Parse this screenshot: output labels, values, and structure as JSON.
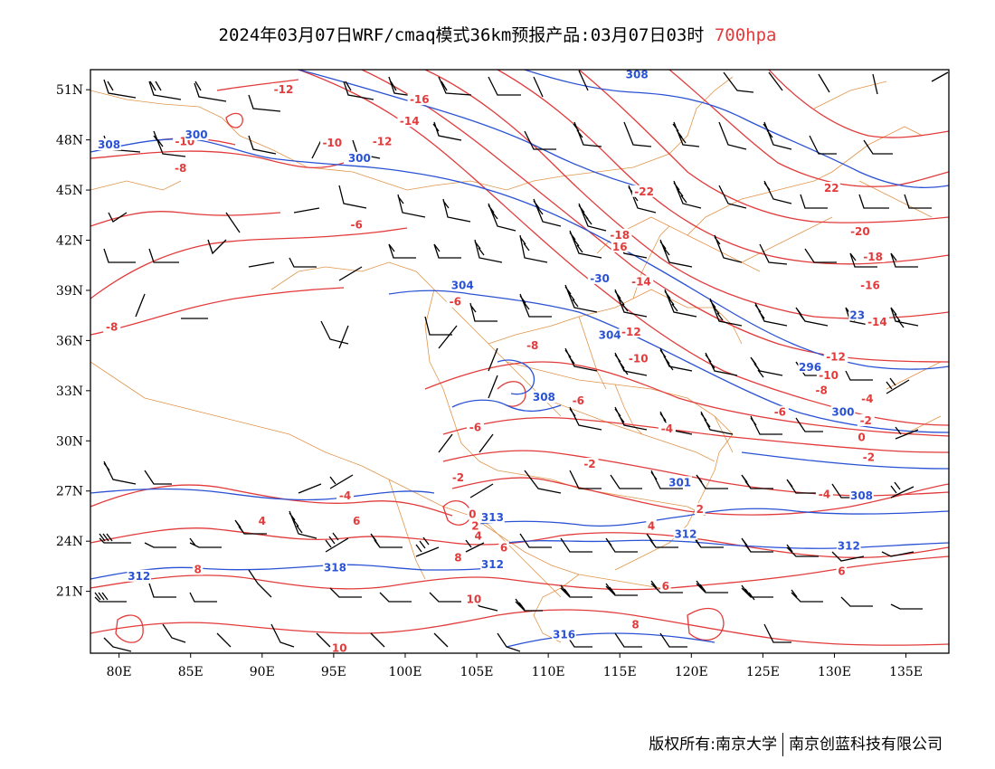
{
  "title": {
    "main": "2024年03月07日WRF/cmaq模式36km预报产品:03月07日03时",
    "level": "700hpa",
    "level_color": "#e23b3b"
  },
  "footer": {
    "copyright": "版权所有:南京大学",
    "company": "南京创蓝科技有限公司"
  },
  "map": {
    "lon_ticks": [
      "80E",
      "85E",
      "90E",
      "95E",
      "100E",
      "105E",
      "110E",
      "115E",
      "120E",
      "125E",
      "130E",
      "135E"
    ],
    "lat_ticks": [
      "51N",
      "48N",
      "45N",
      "42N",
      "39N",
      "36N",
      "33N",
      "30N",
      "27N",
      "24N",
      "21N"
    ],
    "colors": {
      "temperature": "#e23b3b",
      "height": "#2a52d4",
      "boundary": "#e0954a",
      "barb": "#000000"
    },
    "temperature_labels": [
      {
        "text": "-12",
        "lon": 91.5,
        "lat": 50.9
      },
      {
        "text": "-16",
        "lon": 101,
        "lat": 50.3
      },
      {
        "text": "-14",
        "lon": 100.3,
        "lat": 49.0
      },
      {
        "text": "-10",
        "lon": 84.6,
        "lat": 47.8
      },
      {
        "text": "-10",
        "lon": 94.9,
        "lat": 47.7
      },
      {
        "text": "-12",
        "lon": 98.4,
        "lat": 47.8
      },
      {
        "text": "-8",
        "lon": 84.3,
        "lat": 46.2
      },
      {
        "text": "-22",
        "lon": 116.7,
        "lat": 44.8
      },
      {
        "text": "22",
        "lon": 129.8,
        "lat": 45.0
      },
      {
        "text": "-20",
        "lon": 131.8,
        "lat": 42.4
      },
      {
        "text": "-6",
        "lon": 96.6,
        "lat": 42.8
      },
      {
        "text": "-18",
        "lon": 115.0,
        "lat": 42.2
      },
      {
        "text": "16",
        "lon": 115.0,
        "lat": 41.5
      },
      {
        "text": "-18",
        "lon": 132.7,
        "lat": 40.9
      },
      {
        "text": "-14",
        "lon": 116.5,
        "lat": 39.4
      },
      {
        "text": "-16",
        "lon": 132.5,
        "lat": 39.2
      },
      {
        "text": "-6",
        "lon": 103.5,
        "lat": 38.2
      },
      {
        "text": "-14",
        "lon": 133.0,
        "lat": 37.0
      },
      {
        "text": "-8",
        "lon": 79.5,
        "lat": 36.7
      },
      {
        "text": "-12",
        "lon": 115.8,
        "lat": 36.4
      },
      {
        "text": "-8",
        "lon": 108.9,
        "lat": 35.6
      },
      {
        "text": "-10",
        "lon": 116.3,
        "lat": 34.8
      },
      {
        "text": "-12",
        "lon": 130.1,
        "lat": 34.9
      },
      {
        "text": "-10",
        "lon": 129.6,
        "lat": 33.8
      },
      {
        "text": "-8",
        "lon": 129.1,
        "lat": 32.9
      },
      {
        "text": "-4",
        "lon": 132.3,
        "lat": 32.4
      },
      {
        "text": "-6",
        "lon": 112.1,
        "lat": 32.3
      },
      {
        "text": "-6",
        "lon": 126.2,
        "lat": 31.6
      },
      {
        "text": "-2",
        "lon": 132.2,
        "lat": 31.1
      },
      {
        "text": "-6",
        "lon": 104.9,
        "lat": 30.7
      },
      {
        "text": "-4",
        "lon": 118.3,
        "lat": 30.6
      },
      {
        "text": "0",
        "lon": 131.9,
        "lat": 30.1
      },
      {
        "text": "-2",
        "lon": 112.9,
        "lat": 28.5
      },
      {
        "text": "-2",
        "lon": 132.4,
        "lat": 28.9
      },
      {
        "text": "-2",
        "lon": 103.7,
        "lat": 27.7
      },
      {
        "text": "-4",
        "lon": 129.3,
        "lat": 26.7
      },
      {
        "text": "-4",
        "lon": 95.8,
        "lat": 26.6
      },
      {
        "text": "2",
        "lon": 120.6,
        "lat": 25.8
      },
      {
        "text": "0",
        "lon": 104.7,
        "lat": 25.5
      },
      {
        "text": "6",
        "lon": 96.6,
        "lat": 25.1
      },
      {
        "text": "4",
        "lon": 90.0,
        "lat": 25.1
      },
      {
        "text": "2",
        "lon": 104.9,
        "lat": 24.8
      },
      {
        "text": "4",
        "lon": 117.2,
        "lat": 24.8
      },
      {
        "text": "4",
        "lon": 105.1,
        "lat": 24.2
      },
      {
        "text": "6",
        "lon": 106.9,
        "lat": 23.5
      },
      {
        "text": "8",
        "lon": 103.7,
        "lat": 22.9
      },
      {
        "text": "8",
        "lon": 85.5,
        "lat": 22.2
      },
      {
        "text": "6",
        "lon": 130.5,
        "lat": 22.1
      },
      {
        "text": "6",
        "lon": 118.2,
        "lat": 21.2
      },
      {
        "text": "10",
        "lon": 104.8,
        "lat": 20.4
      },
      {
        "text": "8",
        "lon": 116.1,
        "lat": 18.9
      },
      {
        "text": "10",
        "lon": 95.4,
        "lat": 17.5
      }
    ],
    "height_labels": [
      {
        "text": "308",
        "lon": 116.2,
        "lat": 51.8
      },
      {
        "text": "308",
        "lon": 79.3,
        "lat": 47.6
      },
      {
        "text": "300",
        "lon": 85.4,
        "lat": 48.2
      },
      {
        "text": "300",
        "lon": 96.8,
        "lat": 46.8
      },
      {
        "text": "304",
        "lon": 104.0,
        "lat": 39.2
      },
      {
        "text": "-30",
        "lon": 113.6,
        "lat": 39.6
      },
      {
        "text": "304",
        "lon": 114.3,
        "lat": 36.2
      },
      {
        "text": "23",
        "lon": 131.6,
        "lat": 37.4
      },
      {
        "text": "296",
        "lon": 128.3,
        "lat": 34.3
      },
      {
        "text": "308",
        "lon": 109.7,
        "lat": 32.5
      },
      {
        "text": "300",
        "lon": 130.6,
        "lat": 31.6
      },
      {
        "text": "301",
        "lon": 119.2,
        "lat": 27.4
      },
      {
        "text": "308",
        "lon": 131.9,
        "lat": 26.6
      },
      {
        "text": "312",
        "lon": 119.6,
        "lat": 24.3
      },
      {
        "text": "312",
        "lon": 131.0,
        "lat": 23.6
      },
      {
        "text": "312",
        "lon": 81.4,
        "lat": 21.8
      },
      {
        "text": "318",
        "lon": 95.1,
        "lat": 22.3
      },
      {
        "text": "312",
        "lon": 106.1,
        "lat": 22.5
      },
      {
        "text": "313",
        "lon": 106.1,
        "lat": 25.3
      },
      {
        "text": "316",
        "lon": 111.1,
        "lat": 18.3
      }
    ]
  }
}
